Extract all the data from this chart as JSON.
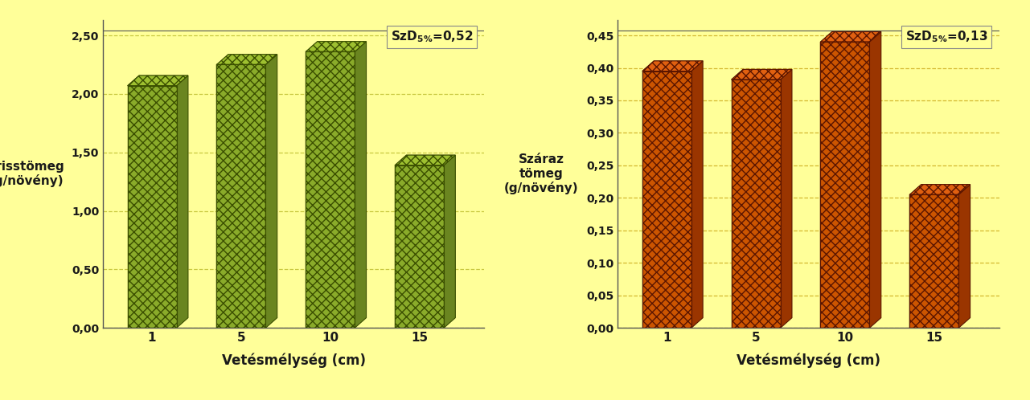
{
  "left_chart": {
    "categories": [
      "1",
      "5",
      "10",
      "15"
    ],
    "values": [
      2.07,
      2.25,
      2.36,
      1.39
    ],
    "ylabel_lines": [
      "Frisstömeg",
      "(g/növény)"
    ],
    "xlabel": "Vetésmélység (cm)",
    "ylim": [
      0,
      2.5
    ],
    "yticks": [
      0.0,
      0.5,
      1.0,
      1.5,
      2.0,
      2.5
    ],
    "ytick_labels": [
      "0,00",
      "0,50",
      "1,00",
      "1,50",
      "2,00",
      "2,50"
    ],
    "annotation_val": "=0,52",
    "bar_face_color": "#8aab2a",
    "bar_top_color": "#9ec030",
    "bar_side_color": "#6a8520",
    "bar_edge_color": "#3a4e00",
    "grid_color": "#c8c840",
    "background_color": "#ffff99"
  },
  "right_chart": {
    "categories": [
      "1",
      "5",
      "10",
      "15"
    ],
    "values": [
      0.395,
      0.382,
      0.44,
      0.205
    ],
    "ylabel_lines": [
      "Száraz",
      "tömeg",
      "(g/növény)"
    ],
    "xlabel": "Vetésmélység (cm)",
    "ylim": [
      0,
      0.45
    ],
    "yticks": [
      0.0,
      0.05,
      0.1,
      0.15,
      0.2,
      0.25,
      0.3,
      0.35,
      0.4,
      0.45
    ],
    "ytick_labels": [
      "0,00",
      "0,05",
      "0,10",
      "0,15",
      "0,20",
      "0,25",
      "0,30",
      "0,35",
      "0,40",
      "0,45"
    ],
    "annotation_val": "=0,13",
    "bar_face_color": "#cc5500",
    "bar_top_color": "#e06010",
    "bar_side_color": "#9a3500",
    "bar_edge_color": "#5a1500",
    "grid_color": "#d4b830",
    "background_color": "#ffff99"
  },
  "figure_background": "#ffff99"
}
